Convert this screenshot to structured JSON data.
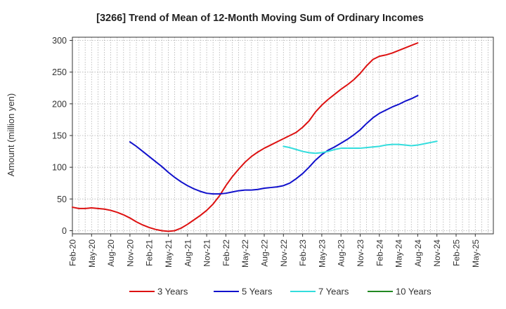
{
  "chart_data": {
    "type": "line",
    "title": "[3266]  Trend of Mean of 12-Month Moving Sum of Ordinary Incomes",
    "xlabel": "",
    "ylabel": "Amount (million yen)",
    "ylim": [
      -5,
      305
    ],
    "yticks": [
      0,
      50,
      100,
      150,
      200,
      250,
      300
    ],
    "grid": true,
    "legend_position": "bottom",
    "x_tick_labels": [
      "Feb-20",
      "May-20",
      "Aug-20",
      "Nov-20",
      "Feb-21",
      "May-21",
      "Aug-21",
      "Nov-21",
      "Feb-22",
      "May-22",
      "Aug-22",
      "Nov-22",
      "Feb-23",
      "May-23",
      "Aug-23",
      "Nov-23",
      "Feb-24",
      "May-24",
      "Aug-24",
      "Nov-24",
      "Feb-25",
      "May-25"
    ],
    "x_start": "Feb-20",
    "series": [
      {
        "name": "3 Years",
        "color": "#dd1111",
        "start_index": 0,
        "values": [
          37,
          35,
          35,
          36,
          35,
          34,
          32,
          29,
          25,
          20,
          14,
          9,
          5,
          2,
          0,
          -1,
          0,
          4,
          10,
          17,
          24,
          32,
          42,
          55,
          71,
          85,
          97,
          108,
          117,
          124,
          130,
          135,
          140,
          145,
          150,
          155,
          163,
          173,
          187,
          198,
          207,
          215,
          223,
          230,
          238,
          248,
          260,
          270,
          275,
          277,
          280,
          284,
          288,
          292,
          296
        ]
      },
      {
        "name": "5 Years",
        "color": "#1111cc",
        "start_index": 9,
        "values": [
          140,
          133,
          125,
          117,
          109,
          101,
          92,
          84,
          77,
          71,
          66,
          62,
          59,
          58,
          58,
          59,
          61,
          63,
          64,
          64,
          65,
          67,
          68,
          69,
          71,
          75,
          82,
          90,
          100,
          111,
          120,
          127,
          132,
          138,
          144,
          151,
          159,
          169,
          178,
          185,
          190,
          195,
          199,
          204,
          208,
          213
        ]
      },
      {
        "name": "7 Years",
        "color": "#33dddd",
        "start_index": 33,
        "values": [
          133,
          131,
          128,
          125,
          123,
          122,
          123,
          125,
          128,
          130,
          130,
          130,
          130,
          131,
          132,
          133,
          135,
          136,
          136,
          135,
          134,
          135,
          137,
          139,
          141
        ]
      },
      {
        "name": "10 Years",
        "color": "#228822",
        "start_index": 0,
        "values": []
      }
    ]
  }
}
